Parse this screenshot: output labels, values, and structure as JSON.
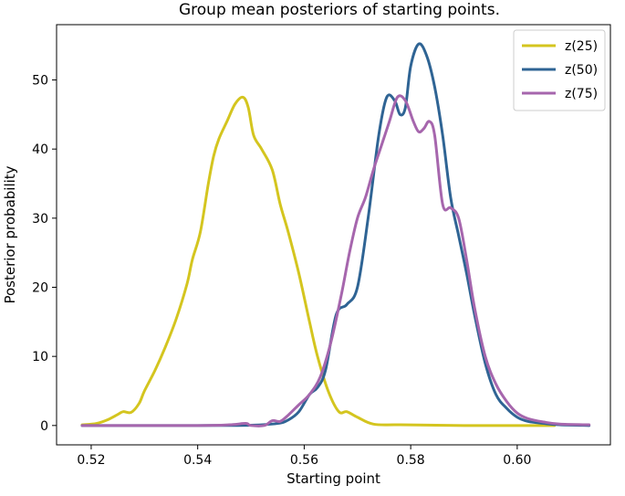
{
  "chart_data": {
    "type": "line",
    "title": "Group mean posteriors of starting points.",
    "xlabel": "Starting point",
    "ylabel": "Posterior probability",
    "xlim": [
      0.5135,
      0.6175
    ],
    "ylim": [
      -2.8,
      58.0
    ],
    "xticks": [
      0.52,
      0.54,
      0.56,
      0.58,
      0.6
    ],
    "xtick_labels": [
      "0.52",
      "0.54",
      "0.56",
      "0.58",
      "0.60"
    ],
    "yticks": [
      0,
      10,
      20,
      30,
      40,
      50
    ],
    "ytick_labels": [
      "0",
      "10",
      "20",
      "30",
      "40",
      "50"
    ],
    "grid": false,
    "legend_position": "top-right",
    "series": [
      {
        "name": "z(25)",
        "color": "#d4c51f",
        "points": [
          [
            0.5183,
            0.1
          ],
          [
            0.521,
            0.3
          ],
          [
            0.523,
            0.8
          ],
          [
            0.525,
            1.6
          ],
          [
            0.526,
            2.0
          ],
          [
            0.5275,
            1.9
          ],
          [
            0.529,
            3.2
          ],
          [
            0.53,
            5.0
          ],
          [
            0.532,
            8.0
          ],
          [
            0.534,
            11.5
          ],
          [
            0.536,
            15.5
          ],
          [
            0.538,
            20.5
          ],
          [
            0.539,
            24.0
          ],
          [
            0.5405,
            28.0
          ],
          [
            0.542,
            35.0
          ],
          [
            0.543,
            39.0
          ],
          [
            0.544,
            41.5
          ],
          [
            0.5455,
            44.0
          ],
          [
            0.547,
            46.5
          ],
          [
            0.5485,
            47.5
          ],
          [
            0.5495,
            46.0
          ],
          [
            0.5505,
            42.0
          ],
          [
            0.552,
            40.0
          ],
          [
            0.554,
            37.0
          ],
          [
            0.5555,
            32.0
          ],
          [
            0.557,
            28.0
          ],
          [
            0.559,
            22.0
          ],
          [
            0.561,
            15.0
          ],
          [
            0.5625,
            10.0
          ],
          [
            0.5645,
            5.0
          ],
          [
            0.5665,
            2.0
          ],
          [
            0.568,
            2.0
          ],
          [
            0.57,
            1.2
          ],
          [
            0.573,
            0.2
          ],
          [
            0.578,
            0.1
          ],
          [
            0.59,
            0.0
          ],
          [
            0.607,
            0.0
          ]
        ]
      },
      {
        "name": "z(50)",
        "color": "#2f6494",
        "points": [
          [
            0.5183,
            0.0
          ],
          [
            0.54,
            0.0
          ],
          [
            0.55,
            0.05
          ],
          [
            0.555,
            0.3
          ],
          [
            0.557,
            0.8
          ],
          [
            0.559,
            2.0
          ],
          [
            0.561,
            4.5
          ],
          [
            0.5625,
            5.5
          ],
          [
            0.564,
            8.0
          ],
          [
            0.566,
            16.0
          ],
          [
            0.568,
            17.5
          ],
          [
            0.57,
            20.0
          ],
          [
            0.572,
            30.0
          ],
          [
            0.574,
            42.0
          ],
          [
            0.5755,
            47.5
          ],
          [
            0.577,
            47.0
          ],
          [
            0.578,
            45.0
          ],
          [
            0.579,
            46.0
          ],
          [
            0.58,
            52.0
          ],
          [
            0.5815,
            55.2
          ],
          [
            0.583,
            53.5
          ],
          [
            0.5845,
            49.0
          ],
          [
            0.586,
            42.0
          ],
          [
            0.5875,
            33.0
          ],
          [
            0.589,
            27.5
          ],
          [
            0.5905,
            22.0
          ],
          [
            0.592,
            16.0
          ],
          [
            0.594,
            9.0
          ],
          [
            0.596,
            4.5
          ],
          [
            0.598,
            2.5
          ],
          [
            0.6,
            1.2
          ],
          [
            0.602,
            0.6
          ],
          [
            0.605,
            0.3
          ],
          [
            0.608,
            0.1
          ],
          [
            0.6135,
            0.0
          ]
        ]
      },
      {
        "name": "z(75)",
        "color": "#a666ad",
        "points": [
          [
            0.5183,
            0.0
          ],
          [
            0.54,
            0.0
          ],
          [
            0.546,
            0.1
          ],
          [
            0.549,
            0.3
          ],
          [
            0.55,
            0.0
          ],
          [
            0.5525,
            0.0
          ],
          [
            0.554,
            0.7
          ],
          [
            0.5555,
            0.6
          ],
          [
            0.557,
            1.5
          ],
          [
            0.559,
            3.0
          ],
          [
            0.561,
            4.5
          ],
          [
            0.563,
            7.0
          ],
          [
            0.565,
            12.0
          ],
          [
            0.567,
            19.0
          ],
          [
            0.5685,
            25.0
          ],
          [
            0.57,
            30.0
          ],
          [
            0.5715,
            33.0
          ],
          [
            0.573,
            37.0
          ],
          [
            0.5745,
            40.5
          ],
          [
            0.576,
            44.0
          ],
          [
            0.5775,
            47.5
          ],
          [
            0.579,
            47.0
          ],
          [
            0.5805,
            44.0
          ],
          [
            0.5815,
            42.5
          ],
          [
            0.5825,
            43.0
          ],
          [
            0.5835,
            44.0
          ],
          [
            0.5845,
            42.0
          ],
          [
            0.586,
            32.0
          ],
          [
            0.5875,
            31.5
          ],
          [
            0.589,
            30.0
          ],
          [
            0.5905,
            24.0
          ],
          [
            0.592,
            17.0
          ],
          [
            0.594,
            10.0
          ],
          [
            0.596,
            6.0
          ],
          [
            0.598,
            3.5
          ],
          [
            0.6,
            1.8
          ],
          [
            0.602,
            1.0
          ],
          [
            0.605,
            0.5
          ],
          [
            0.608,
            0.2
          ],
          [
            0.6135,
            0.1
          ]
        ]
      }
    ]
  }
}
